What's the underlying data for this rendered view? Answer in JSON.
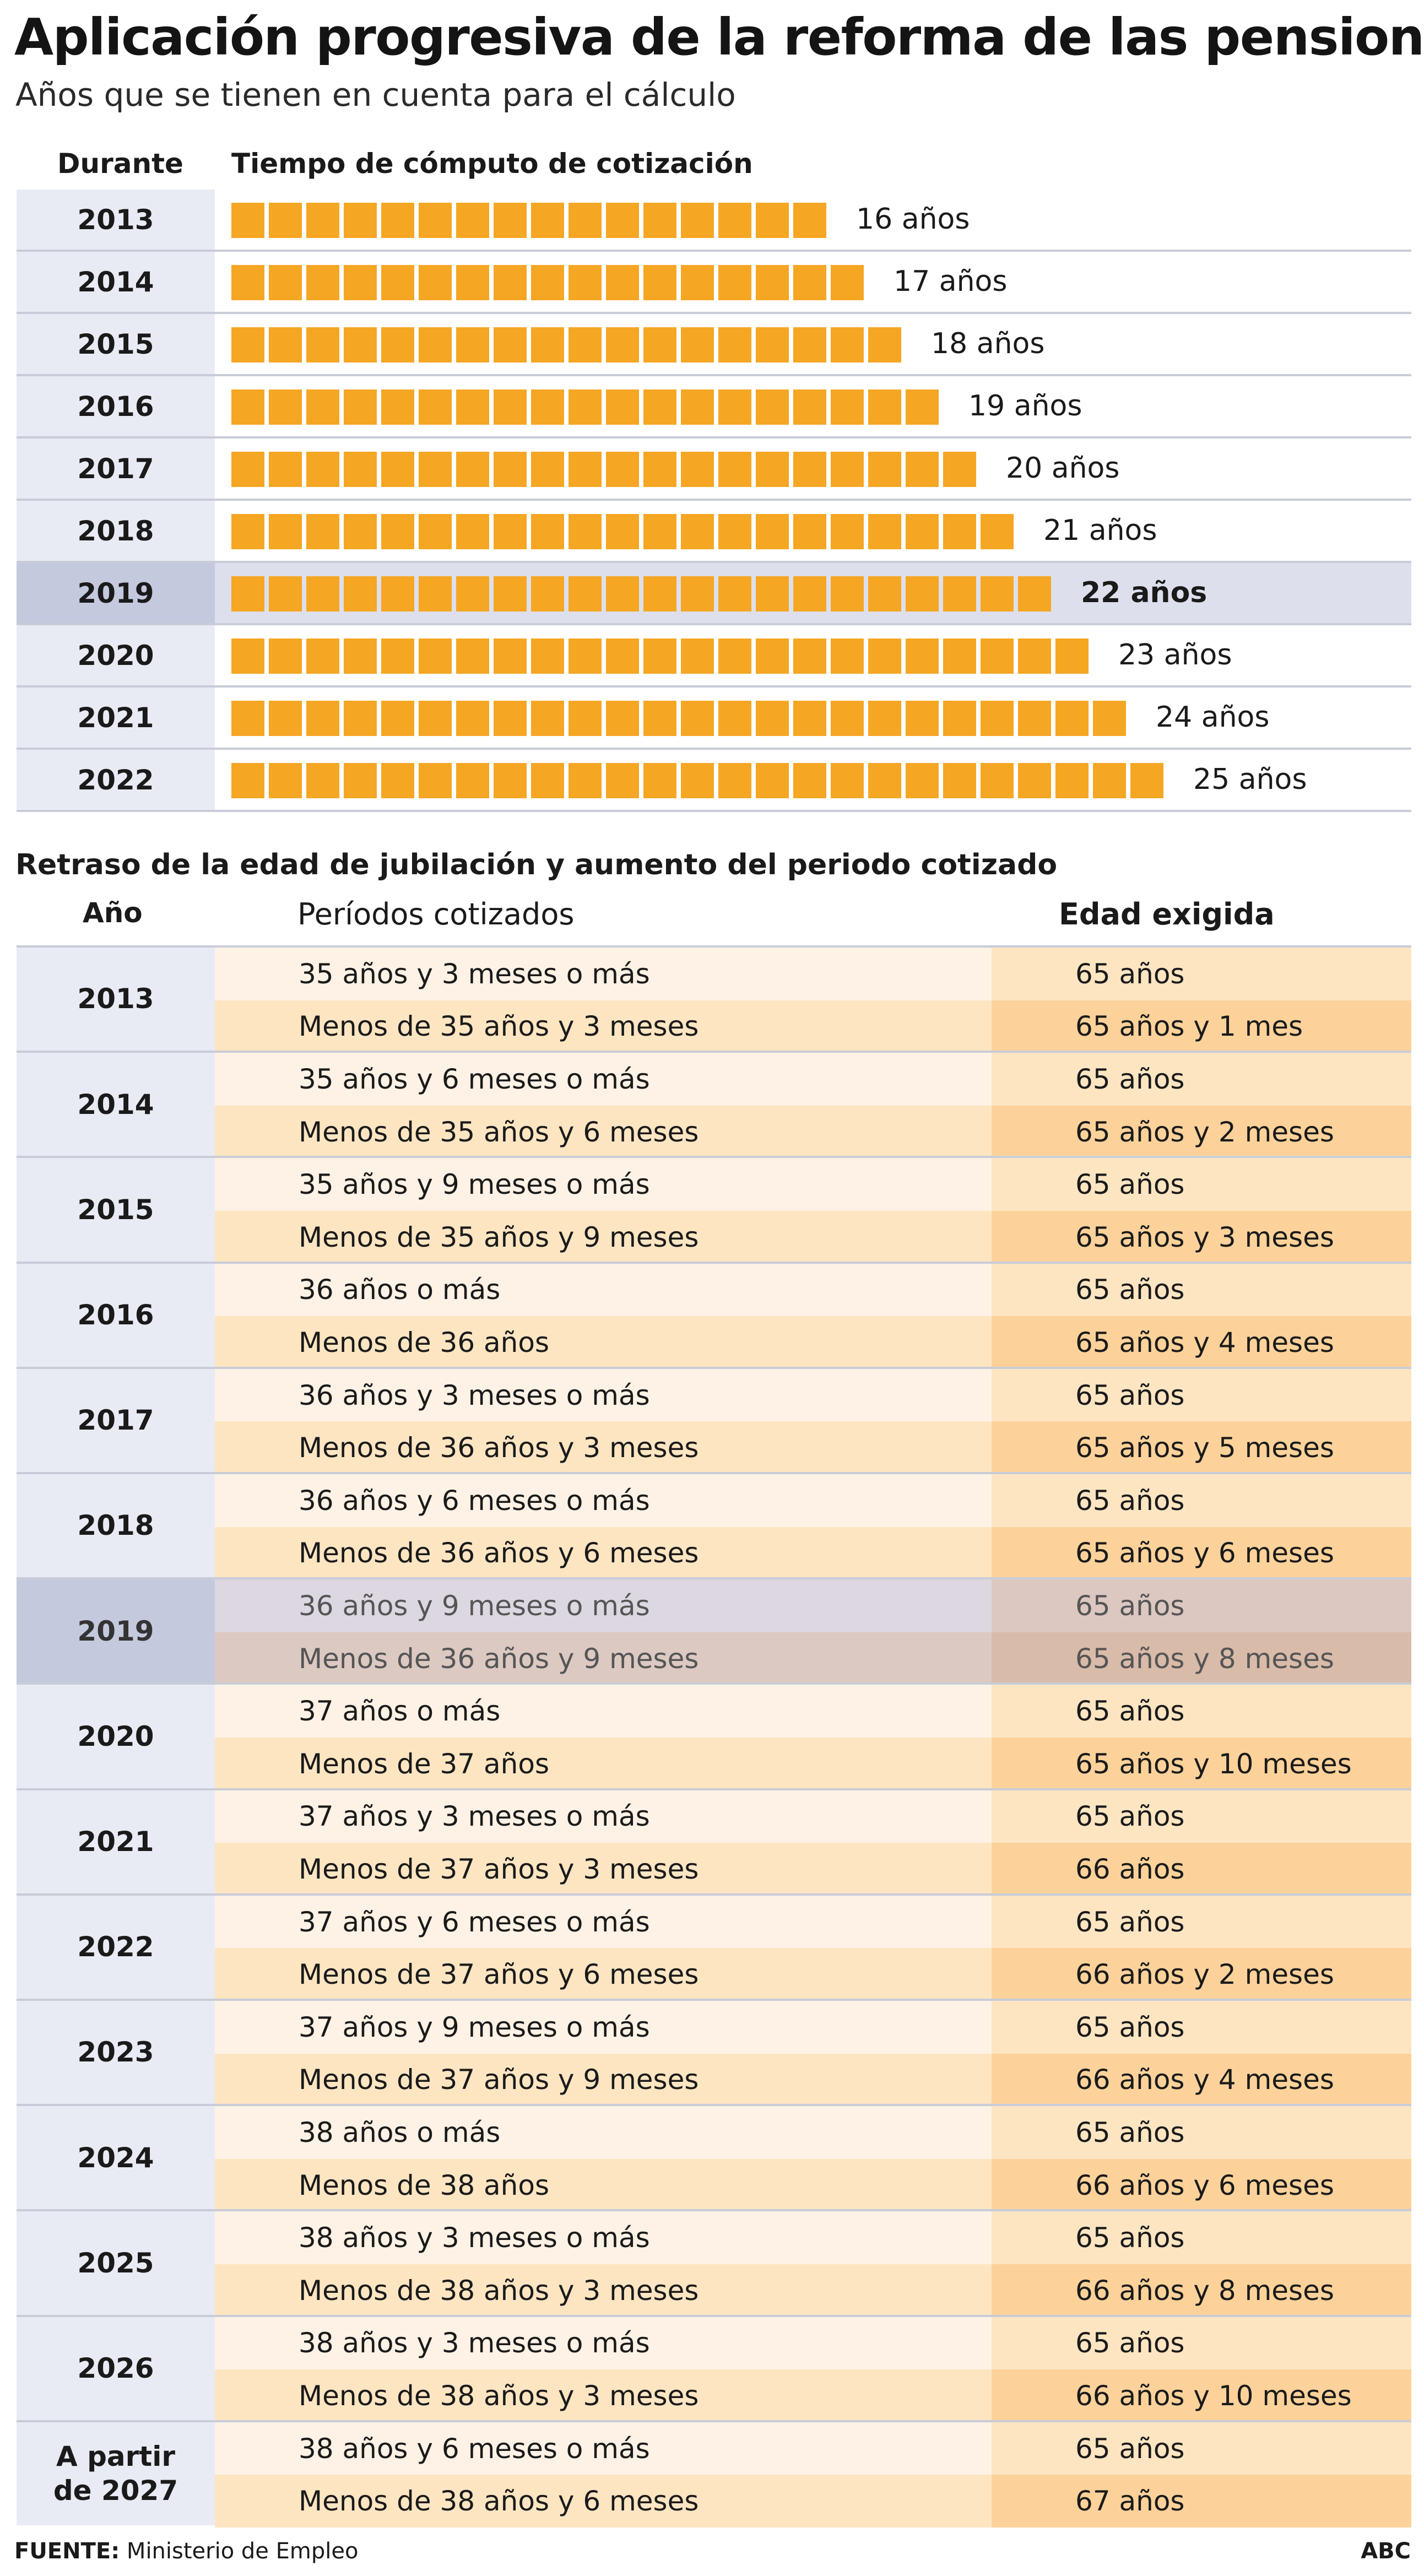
{
  "header": {
    "title": "Aplicación progresiva de la reforma de las pensiones",
    "subtitle": "Años que se tienen en cuenta para el cálculo"
  },
  "chart_data": [
    {
      "type": "bar",
      "columns": [
        "Durante",
        "Tiempo de cómputo de cotización"
      ],
      "categories": [
        "2013",
        "2014",
        "2015",
        "2016",
        "2017",
        "2018",
        "2019",
        "2020",
        "2021",
        "2022"
      ],
      "values": [
        16,
        17,
        18,
        19,
        20,
        21,
        22,
        23,
        24,
        25
      ],
      "value_labels": [
        "16  años",
        "17 años",
        "18 años",
        "19 años",
        "20 años",
        "21 años",
        "22 años",
        "23 años",
        "24 años",
        "25 años"
      ],
      "highlight": "2019",
      "bar_color": "#f5a623"
    },
    {
      "type": "table",
      "title": "Retraso de la edad de jubilación y aumento del periodo cotizado",
      "columns": [
        "Año",
        "Períodos cotizados",
        "Edad exigida"
      ],
      "highlight": "2019",
      "rows": [
        {
          "year": "2013",
          "items": [
            [
              "35 años y 3 meses o más",
              "65 años"
            ],
            [
              "Menos de 35 años y 3 meses",
              "65 años y 1 mes"
            ]
          ]
        },
        {
          "year": "2014",
          "items": [
            [
              "35 años y 6 meses o más",
              "65 años"
            ],
            [
              "Menos de 35 años y 6 meses",
              "65 años y 2 meses"
            ]
          ]
        },
        {
          "year": "2015",
          "items": [
            [
              "35 años y 9 meses o más",
              "65 años"
            ],
            [
              "Menos de 35 años y 9 meses",
              "65 años y 3 meses"
            ]
          ]
        },
        {
          "year": "2016",
          "items": [
            [
              "36 años o más",
              "65 años"
            ],
            [
              "Menos de 36 años",
              "65 años y 4 meses"
            ]
          ]
        },
        {
          "year": "2017",
          "items": [
            [
              "36 años y 3 meses o más",
              "65 años"
            ],
            [
              "Menos de 36 años y 3 meses",
              "65 años y 5 meses"
            ]
          ]
        },
        {
          "year": "2018",
          "items": [
            [
              "36 años y 6 meses o más",
              "65 años"
            ],
            [
              "Menos de 36 años y 6 meses",
              "65 años y 6 meses"
            ]
          ]
        },
        {
          "year": "2019",
          "items": [
            [
              "36 años y 9 meses o más",
              "65 años"
            ],
            [
              "Menos de 36 años y 9 meses",
              "65 años y 8 meses"
            ]
          ]
        },
        {
          "year": "2020",
          "items": [
            [
              "37 años o más",
              "65 años"
            ],
            [
              "Menos de 37 años",
              "65 años y 10 meses"
            ]
          ]
        },
        {
          "year": "2021",
          "items": [
            [
              "37 años y 3 meses o más",
              "65 años"
            ],
            [
              "Menos de 37 años y 3 meses",
              "66 años"
            ]
          ]
        },
        {
          "year": "2022",
          "items": [
            [
              "37 años y 6 meses o más",
              "65 años"
            ],
            [
              "Menos de 37 años y 6 meses",
              "66 años y 2 meses"
            ]
          ]
        },
        {
          "year": "2023",
          "items": [
            [
              "37 años y 9 meses o más",
              "65 años"
            ],
            [
              "Menos de 37 años y 9 meses",
              "66 años y 4 meses"
            ]
          ]
        },
        {
          "year": "2024",
          "items": [
            [
              "38 años o más",
              "65 años"
            ],
            [
              "Menos de 38 años",
              "66 años y 6 meses"
            ]
          ]
        },
        {
          "year": "2025",
          "items": [
            [
              "38 años y 3 meses o más",
              "65 años"
            ],
            [
              "Menos de 38 años y 3 meses",
              "66 años y 8 meses"
            ]
          ]
        },
        {
          "year": "2026",
          "items": [
            [
              "38 años y 3 meses o más",
              "65 años"
            ],
            [
              "Menos de 38 años y 3 meses",
              "66 años y 10 meses"
            ]
          ]
        },
        {
          "year": "A partir\nde  2027",
          "items": [
            [
              "38 años y 6 meses o más",
              "65 años"
            ],
            [
              "Menos de 38 años y 6 meses",
              "67 años"
            ]
          ]
        }
      ]
    }
  ],
  "footer": {
    "source_label": "FUENTE:",
    "source_text": " Ministerio de Empleo",
    "brand": "ABC"
  }
}
